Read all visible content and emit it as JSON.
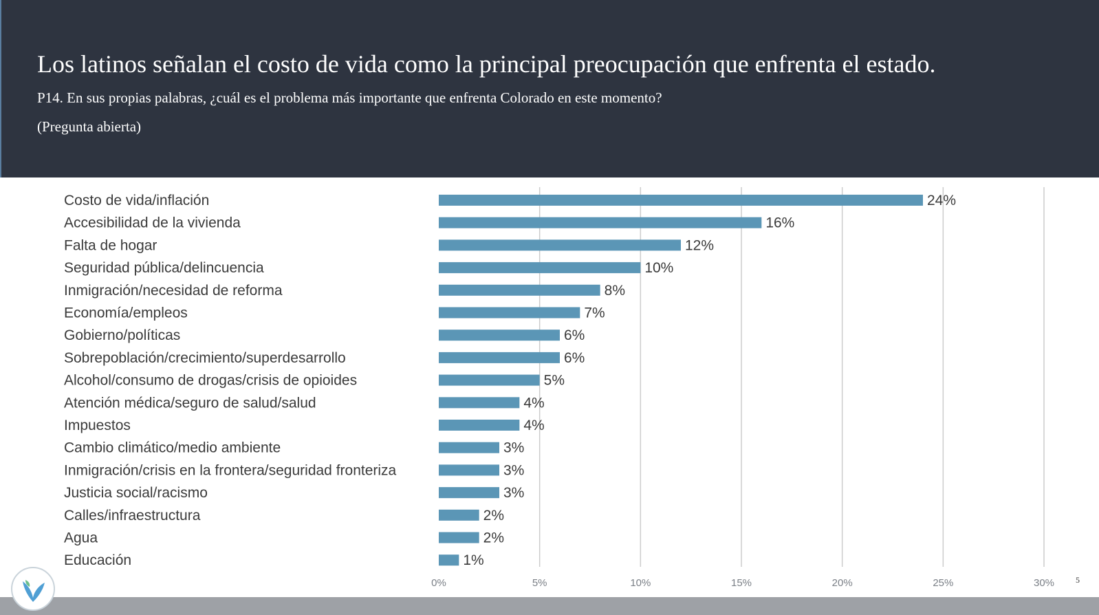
{
  "header": {
    "title": "Los latinos señalan el costo de vida como la principal preocupación que enfrenta el estado.",
    "subtitle": "P14. En sus propias palabras, ¿cuál es el problema más importante que enfrenta Colorado en este momento?",
    "note": "(Pregunta abierta)"
  },
  "page_number": "5",
  "colors": {
    "header_bg": "#2e3440",
    "bar": "#5b96b6",
    "grid": "#cccccc",
    "footer": "#9ea1a6"
  },
  "logo": {
    "icon": "leaf-logo-icon"
  },
  "chart_data": {
    "type": "bar",
    "orientation": "horizontal",
    "categories": [
      "Costo de vida/inflación",
      "Accesibilidad de la vivienda",
      "Falta de hogar",
      "Seguridad pública/delincuencia",
      "Inmigración/necesidad de reforma",
      "Economía/empleos",
      "Gobierno/políticas",
      "Sobrepoblación/crecimiento/superdesarrollo",
      "Alcohol/consumo de drogas/crisis de opioides",
      "Atención médica/seguro de salud/salud",
      "Impuestos",
      "Cambio climático/medio ambiente",
      "Inmigración/crisis en la frontera/seguridad fronteriza",
      "Justicia social/racismo",
      "Calles/infraestructura",
      "Agua",
      "Educación"
    ],
    "values": [
      24,
      16,
      12,
      10,
      8,
      7,
      6,
      6,
      5,
      4,
      4,
      3,
      3,
      3,
      2,
      2,
      1
    ],
    "value_labels": [
      "24%",
      "16%",
      "12%",
      "10%",
      "8%",
      "7%",
      "6%",
      "6%",
      "5%",
      "4%",
      "4%",
      "3%",
      "3%",
      "3%",
      "2%",
      "2%",
      "1%"
    ],
    "xlim": [
      0,
      30
    ],
    "xticks": [
      0,
      5,
      10,
      15,
      20,
      25,
      30
    ],
    "xtick_labels": [
      "0%",
      "5%",
      "10%",
      "15%",
      "20%",
      "25%",
      "30%"
    ],
    "grid": true
  }
}
